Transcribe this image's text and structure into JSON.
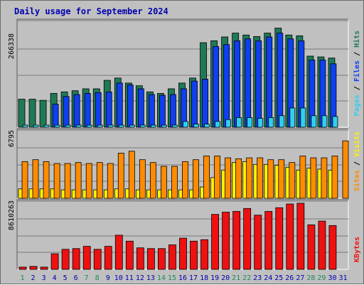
{
  "title": "Daily usage for September 2024",
  "colors": {
    "hits": "#1e7a55",
    "files": "#0f3ff0",
    "pages": "#2fd0f0",
    "visits": "#fff200",
    "sites": "#ff8c00",
    "kbytes": "#ee1111",
    "weekend_label": "#1e8a5a",
    "weekday_label": "#0000b0",
    "panel_bg": "#c0c0c0",
    "grid": "#7a7a7a"
  },
  "chart_data": [
    {
      "type": "bar",
      "panel": "hits-files-pages",
      "max_label": "266338",
      "ymax": 266338,
      "categories": [
        "1",
        "2",
        "3",
        "4",
        "5",
        "6",
        "7",
        "8",
        "9",
        "10",
        "11",
        "12",
        "13",
        "14",
        "15",
        "16",
        "17",
        "18",
        "19",
        "20",
        "21",
        "22",
        "23",
        "24",
        "25",
        "26",
        "27",
        "28",
        "29",
        "30",
        "31"
      ],
      "weekend": [
        true,
        false,
        false,
        false,
        false,
        false,
        true,
        true,
        false,
        false,
        false,
        false,
        false,
        true,
        true,
        false,
        false,
        false,
        false,
        false,
        true,
        true,
        false,
        false,
        false,
        false,
        false,
        true,
        true,
        false,
        false
      ],
      "series": [
        {
          "name": "Hits",
          "values": [
            73000,
            73000,
            70000,
            88000,
            92000,
            95000,
            100000,
            100000,
            122000,
            128000,
            115000,
            108000,
            92000,
            88000,
            100000,
            115000,
            128000,
            220000,
            225000,
            235000,
            245000,
            240000,
            236000,
            245000,
            258000,
            240000,
            238000,
            185000,
            183000,
            180000,
            0
          ]
        },
        {
          "name": "Files",
          "values": [
            0,
            0,
            0,
            60000,
            80000,
            85000,
            88000,
            90000,
            92000,
            115000,
            110000,
            100000,
            85000,
            83000,
            85000,
            100000,
            120000,
            125000,
            210000,
            215000,
            225000,
            230000,
            225000,
            235000,
            245000,
            230000,
            225000,
            175000,
            175000,
            165000,
            0
          ]
        },
        {
          "name": "Pages",
          "values": [
            5000,
            5000,
            5000,
            5000,
            5000,
            5000,
            5000,
            5000,
            5000,
            5000,
            5000,
            5000,
            5000,
            5000,
            5000,
            15000,
            8000,
            8000,
            15000,
            20000,
            25000,
            25000,
            23000,
            25000,
            30000,
            50000,
            50000,
            30000,
            30000,
            28000,
            0
          ]
        }
      ],
      "legend": [
        "Pages",
        "Files",
        "Hits"
      ]
    },
    {
      "type": "bar",
      "panel": "visits-sites",
      "max_label": "6795",
      "ymax": 6795,
      "categories": [
        "1",
        "2",
        "3",
        "4",
        "5",
        "6",
        "7",
        "8",
        "9",
        "10",
        "11",
        "12",
        "13",
        "14",
        "15",
        "16",
        "17",
        "18",
        "19",
        "20",
        "21",
        "22",
        "23",
        "24",
        "25",
        "26",
        "27",
        "28",
        "29",
        "30",
        "31"
      ],
      "series": [
        {
          "name": "Visits",
          "values": [
            1000,
            1000,
            1000,
            1000,
            900,
            900,
            900,
            900,
            900,
            1000,
            1000,
            900,
            900,
            900,
            900,
            900,
            900,
            1200,
            2200,
            3000,
            3800,
            3900,
            3600,
            3600,
            3500,
            3300,
            3000,
            3200,
            3100,
            3000,
            0
          ]
        },
        {
          "name": "Sites",
          "values": [
            3900,
            4100,
            3900,
            3700,
            3700,
            3800,
            3700,
            3800,
            3700,
            4800,
            5000,
            4100,
            3800,
            3400,
            3400,
            3900,
            4100,
            4500,
            4500,
            4300,
            4200,
            4300,
            4300,
            4100,
            4100,
            3800,
            4500,
            4300,
            4300,
            4500,
            6100
          ]
        }
      ],
      "legend": [
        "Sites",
        "Visits"
      ]
    },
    {
      "type": "bar",
      "panel": "kbytes",
      "max_label": "8610263",
      "ymax": 8610263,
      "categories": [
        "1",
        "2",
        "3",
        "4",
        "5",
        "6",
        "7",
        "8",
        "9",
        "10",
        "11",
        "12",
        "13",
        "14",
        "15",
        "16",
        "17",
        "18",
        "19",
        "20",
        "21",
        "22",
        "23",
        "24",
        "25",
        "26",
        "27",
        "28",
        "29",
        "30",
        "31"
      ],
      "series": [
        {
          "name": "KBytes",
          "values": [
            300000,
            400000,
            300000,
            2100000,
            2700000,
            2800000,
            3100000,
            2700000,
            3100000,
            4600000,
            3800000,
            2900000,
            2800000,
            2800000,
            3300000,
            4200000,
            3800000,
            4000000,
            7400000,
            7700000,
            7800000,
            8200000,
            7300000,
            7800000,
            8300000,
            8800000,
            8900000,
            6000000,
            6500000,
            5900000,
            0
          ]
        }
      ],
      "legend": [
        "KBytes"
      ]
    }
  ]
}
